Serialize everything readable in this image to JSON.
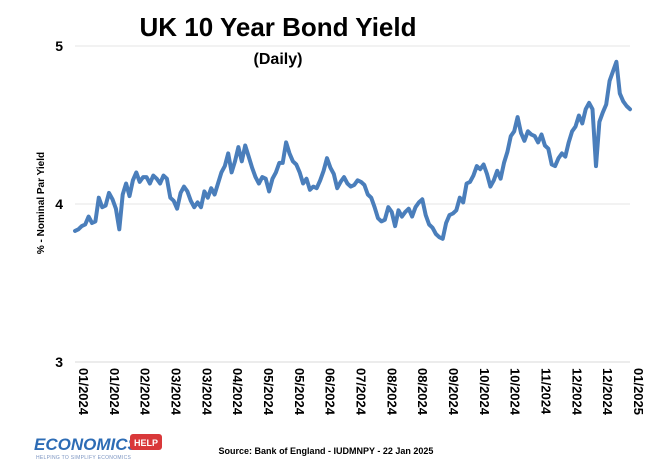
{
  "chart_data": {
    "type": "line",
    "title": "UK 10 Year Bond Yield",
    "subtitle": "(Daily)",
    "ylabel": "% - Nominal Par Yield",
    "xlabel": "",
    "ylim": [
      3,
      5
    ],
    "yticks": [
      3,
      4,
      5
    ],
    "ytick_labels": [
      "3",
      "4",
      "5"
    ],
    "grid": true,
    "x_ticks": [
      "01/2024",
      "01/2024",
      "02/2024",
      "03/2024",
      "03/2024",
      "04/2024",
      "05/2024",
      "05/2024",
      "06/2024",
      "07/2024",
      "08/2024",
      "08/2024",
      "09/2024",
      "10/2024",
      "10/2024",
      "11/2024",
      "12/2024",
      "12/2024",
      "01/2025"
    ],
    "series": [
      {
        "color": "#4a7ebb",
        "values": [
          3.83,
          3.84,
          3.86,
          3.87,
          3.92,
          3.88,
          3.89,
          4.04,
          3.98,
          3.99,
          4.07,
          4.03,
          3.97,
          3.84,
          4.06,
          4.13,
          4.05,
          4.15,
          4.2,
          4.14,
          4.17,
          4.17,
          4.13,
          4.18,
          4.16,
          4.13,
          4.18,
          4.16,
          4.04,
          4.02,
          3.97,
          4.07,
          4.11,
          4.08,
          4.02,
          3.98,
          4.01,
          3.98,
          4.08,
          4.04,
          4.1,
          4.06,
          4.13,
          4.2,
          4.24,
          4.32,
          4.2,
          4.27,
          4.36,
          4.27,
          4.37,
          4.3,
          4.23,
          4.17,
          4.13,
          4.17,
          4.16,
          4.08,
          4.16,
          4.2,
          4.26,
          4.26,
          4.39,
          4.32,
          4.27,
          4.25,
          4.2,
          4.13,
          4.16,
          4.09,
          4.11,
          4.1,
          4.15,
          4.21,
          4.29,
          4.23,
          4.19,
          4.1,
          4.14,
          4.17,
          4.13,
          4.11,
          4.12,
          4.15,
          4.14,
          4.12,
          4.06,
          4.04,
          3.98,
          3.91,
          3.89,
          3.9,
          3.98,
          3.95,
          3.86,
          3.96,
          3.92,
          3.95,
          3.97,
          3.92,
          3.98,
          4.01,
          4.03,
          3.93,
          3.87,
          3.85,
          3.81,
          3.79,
          3.78,
          3.88,
          3.93,
          3.94,
          3.96,
          4.04,
          4.01,
          4.13,
          4.14,
          4.18,
          4.24,
          4.22,
          4.25,
          4.19,
          4.11,
          4.15,
          4.21,
          4.16,
          4.26,
          4.33,
          4.43,
          4.46,
          4.55,
          4.45,
          4.4,
          4.46,
          4.44,
          4.43,
          4.39,
          4.44,
          4.37,
          4.35,
          4.25,
          4.24,
          4.29,
          4.32,
          4.3,
          4.39,
          4.46,
          4.49,
          4.56,
          4.51,
          4.6,
          4.64,
          4.6,
          4.24,
          4.52,
          4.58,
          4.63,
          4.78,
          4.84,
          4.9,
          4.7,
          4.65,
          4.62,
          4.6
        ]
      }
    ]
  },
  "source": "Source: Bank of England - IUDMNPY - 22 Jan 2025",
  "branding": {
    "word": "ECONOMICS",
    "badge": "HELP",
    "tagline": "HELPING TO SIMPLIFY ECONOMICS",
    "colors": {
      "word": "#2d6cb5",
      "badge": "#d9383a"
    }
  }
}
